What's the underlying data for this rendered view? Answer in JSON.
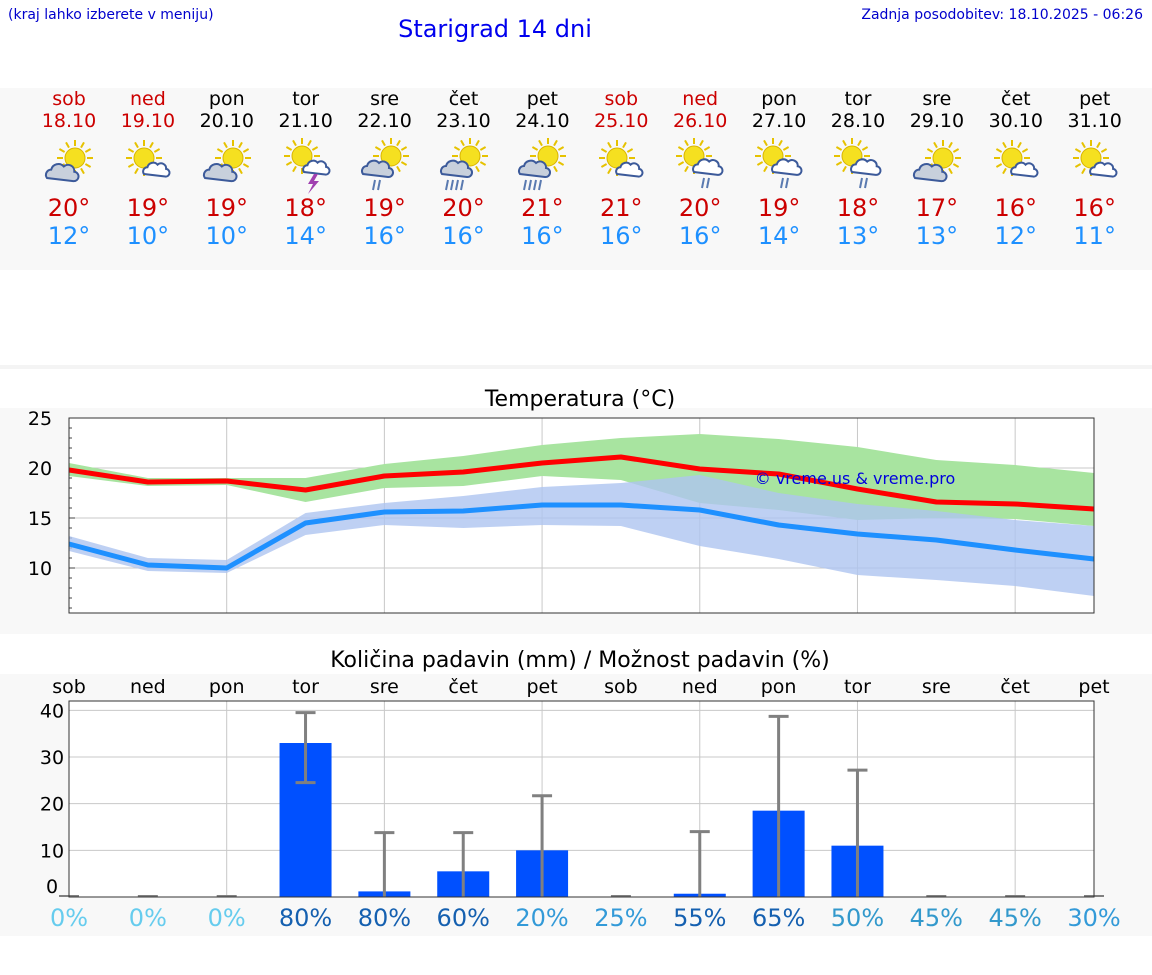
{
  "header": {
    "menu_hint": "(kraj lahko izberete v meniju)",
    "title": "Starigrad 14 dni",
    "updated": "Zadnja posodobitev: 18.10.2025 - 06:26"
  },
  "colors": {
    "weekend": "#cc0000",
    "weekday": "#000000",
    "tmax": "#cc0000",
    "tmin": "#1e90ff",
    "max_band": "#a8e4a0",
    "min_band": "#aec4f0",
    "max_line": "#ff0000",
    "min_line": "#1e90ff",
    "bar": "#0050ff",
    "error_bar": "#808080"
  },
  "days": [
    {
      "name": "sob",
      "date": "18.10",
      "weekend": true,
      "icon": "partly-cloudy-icon",
      "tmax": "20°",
      "tmin": "12°"
    },
    {
      "name": "ned",
      "date": "19.10",
      "weekend": true,
      "icon": "sun-cloud-icon",
      "tmax": "19°",
      "tmin": "10°"
    },
    {
      "name": "pon",
      "date": "20.10",
      "weekend": false,
      "icon": "partly-cloudy-icon",
      "tmax": "19°",
      "tmin": "10°"
    },
    {
      "name": "tor",
      "date": "21.10",
      "weekend": false,
      "icon": "thunderstorm-icon",
      "tmax": "18°",
      "tmin": "14°"
    },
    {
      "name": "sre",
      "date": "22.10",
      "weekend": false,
      "icon": "light-rain-icon",
      "tmax": "19°",
      "tmin": "16°"
    },
    {
      "name": "čet",
      "date": "23.10",
      "weekend": false,
      "icon": "heavy-rain-icon",
      "tmax": "20°",
      "tmin": "16°"
    },
    {
      "name": "pet",
      "date": "24.10",
      "weekend": false,
      "icon": "heavy-rain-icon",
      "tmax": "21°",
      "tmin": "16°"
    },
    {
      "name": "sob",
      "date": "25.10",
      "weekend": true,
      "icon": "sun-cloud-icon",
      "tmax": "21°",
      "tmin": "16°"
    },
    {
      "name": "ned",
      "date": "26.10",
      "weekend": true,
      "icon": "sun-cloud-rain-icon",
      "tmax": "20°",
      "tmin": "16°"
    },
    {
      "name": "pon",
      "date": "27.10",
      "weekend": false,
      "icon": "sun-cloud-rain-icon",
      "tmax": "19°",
      "tmin": "14°"
    },
    {
      "name": "tor",
      "date": "28.10",
      "weekend": false,
      "icon": "sun-cloud-rain-icon",
      "tmax": "18°",
      "tmin": "13°"
    },
    {
      "name": "sre",
      "date": "29.10",
      "weekend": false,
      "icon": "partly-cloudy-icon",
      "tmax": "17°",
      "tmin": "13°"
    },
    {
      "name": "čet",
      "date": "30.10",
      "weekend": false,
      "icon": "sun-cloud-icon",
      "tmax": "16°",
      "tmin": "12°"
    },
    {
      "name": "pet",
      "date": "31.10",
      "weekend": false,
      "icon": "sun-cloud-icon",
      "tmax": "16°",
      "tmin": "11°"
    }
  ],
  "chart_data": [
    {
      "type": "area",
      "title": "Temperatura (°C)",
      "watermark": "© vreme.us & vreme.pro",
      "ylim": [
        5.5,
        25
      ],
      "yticks": [
        "25",
        "20",
        "15",
        "10"
      ],
      "ytick_values": [
        25,
        20,
        15,
        10
      ],
      "x": [
        0,
        1,
        2,
        3,
        4,
        5,
        6,
        7,
        8,
        9,
        10,
        11,
        12,
        13
      ],
      "series": [
        {
          "name": "max",
          "values": [
            19.8,
            18.6,
            18.7,
            17.8,
            19.2,
            19.6,
            20.5,
            21.1,
            19.9,
            19.4,
            17.9,
            16.6,
            16.4,
            15.9
          ],
          "band_low": [
            19.2,
            18.2,
            18.3,
            16.6,
            18.0,
            18.2,
            19.2,
            18.8,
            16.5,
            15.8,
            14.8,
            15.0,
            14.9,
            14.2
          ],
          "band_high": [
            20.5,
            19.0,
            19.0,
            19.0,
            20.4,
            21.2,
            22.3,
            23.0,
            23.4,
            22.9,
            22.1,
            20.8,
            20.3,
            19.5
          ]
        },
        {
          "name": "min",
          "values": [
            12.4,
            10.3,
            10.0,
            14.5,
            15.6,
            15.7,
            16.3,
            16.3,
            15.8,
            14.3,
            13.4,
            12.8,
            11.8,
            10.9
          ],
          "band_low": [
            11.7,
            9.7,
            9.5,
            13.3,
            14.3,
            14.0,
            14.3,
            14.2,
            12.2,
            10.9,
            9.3,
            8.8,
            8.2,
            7.2
          ],
          "band_high": [
            13.2,
            11.0,
            10.8,
            15.5,
            16.5,
            17.2,
            18.1,
            18.5,
            19.3,
            17.5,
            16.4,
            15.7,
            14.8,
            14.2
          ]
        }
      ]
    },
    {
      "type": "bar",
      "title": "Količina padavin (mm) / Možnost padavin (%)",
      "categories": [
        "sob",
        "ned",
        "pon",
        "tor",
        "sre",
        "čet",
        "pet",
        "sob",
        "ned",
        "pon",
        "tor",
        "sre",
        "čet",
        "pet"
      ],
      "values": [
        0,
        0,
        0,
        33,
        1.2,
        5.5,
        10,
        0,
        0.7,
        18.5,
        11,
        0,
        0,
        0
      ],
      "error_high": [
        0,
        0,
        0,
        39.5,
        13.8,
        13.8,
        21.7,
        0,
        14,
        38.7,
        27.2,
        0,
        0,
        0
      ],
      "error_low": [
        0,
        0,
        0,
        24.5,
        0,
        0,
        0,
        0,
        0,
        0,
        0,
        0,
        0,
        0
      ],
      "ylim": [
        0,
        42
      ],
      "yticks": [
        "40",
        "30",
        "20",
        "10",
        "0"
      ],
      "ytick_values": [
        40,
        30,
        20,
        10,
        0
      ],
      "probabilities": [
        "0%",
        "0%",
        "0%",
        "80%",
        "80%",
        "60%",
        "20%",
        "25%",
        "55%",
        "65%",
        "50%",
        "45%",
        "45%",
        "30%"
      ],
      "probability_values": [
        0,
        0,
        0,
        80,
        80,
        60,
        20,
        25,
        55,
        65,
        50,
        45,
        45,
        30
      ]
    }
  ]
}
